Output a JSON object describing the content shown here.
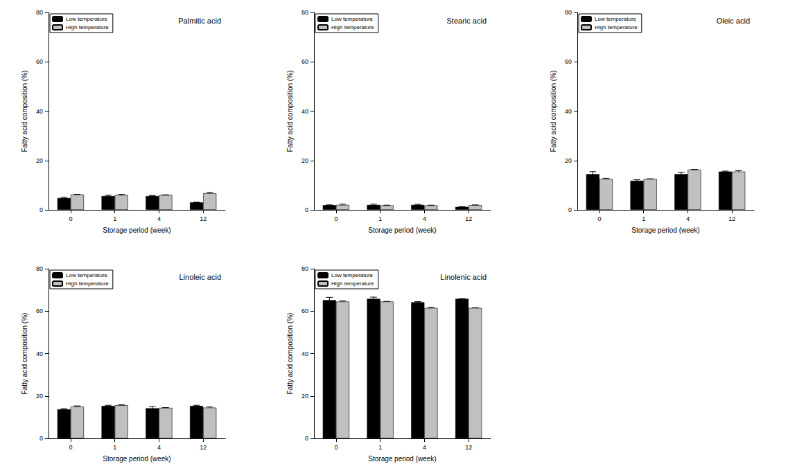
{
  "chart_data": [
    {
      "type": "bar",
      "title": "Palmitic acid",
      "x_label": "Storage period (week)",
      "y_label": "Fatty acid composition (%)",
      "categories": [
        "0",
        "1",
        "4",
        "12"
      ],
      "series": [
        {
          "name": "Low temperature",
          "color": "#000000",
          "values": [
            4.8,
            5.6,
            5.6,
            3.0
          ],
          "errors": [
            0.3,
            0.3,
            0.2,
            0.1
          ]
        },
        {
          "name": "High temperature",
          "color": "#c0c0c0",
          "values": [
            6.2,
            6.0,
            6.0,
            6.7
          ],
          "errors": [
            0.1,
            0.3,
            0.1,
            0.4
          ]
        }
      ],
      "ylim": [
        0,
        80
      ],
      "yticks": [
        0,
        20,
        40,
        60,
        80
      ],
      "legend": "upper left"
    },
    {
      "type": "bar",
      "title": "Stearic acid",
      "x_label": "Storage period (week)",
      "y_label": "Fatty acid composition (%)",
      "categories": [
        "0",
        "1",
        "4",
        "12"
      ],
      "series": [
        {
          "name": "Low temperature",
          "color": "#000000",
          "values": [
            1.9,
            2.0,
            2.0,
            1.2
          ],
          "errors": [
            0.1,
            0.3,
            0.2,
            0.1
          ]
        },
        {
          "name": "High temperature",
          "color": "#c0c0c0",
          "values": [
            2.0,
            1.8,
            1.8,
            1.9
          ],
          "errors": [
            0.3,
            0.1,
            0.1,
            0.1
          ]
        }
      ],
      "ylim": [
        0,
        80
      ],
      "yticks": [
        0,
        20,
        40,
        60,
        80
      ],
      "legend": "upper left"
    },
    {
      "type": "bar",
      "title": "Oleic acid",
      "x_label": "Storage period (week)",
      "y_label": "Fatty acid composition (%)",
      "categories": [
        "0",
        "1",
        "4",
        "12"
      ],
      "series": [
        {
          "name": "Low temperature",
          "color": "#000000",
          "values": [
            14.5,
            11.8,
            14.5,
            15.5
          ],
          "errors": [
            1.0,
            0.4,
            0.7,
            0.2
          ]
        },
        {
          "name": "High temperature",
          "color": "#c0c0c0",
          "values": [
            12.5,
            12.5,
            16.3,
            15.5
          ],
          "errors": [
            0.3,
            0.1,
            0.1,
            0.4
          ]
        }
      ],
      "ylim": [
        0,
        80
      ],
      "yticks": [
        0,
        20,
        40,
        60,
        80
      ],
      "legend": "upper left"
    },
    {
      "type": "bar",
      "title": "Linoleic acid",
      "x_label": "Storage period (week)",
      "y_label": "Fatty acid composition (%)",
      "categories": [
        "0",
        "1",
        "4",
        "12"
      ],
      "series": [
        {
          "name": "Low temperature",
          "color": "#000000",
          "values": [
            13.7,
            15.3,
            14.2,
            15.3
          ],
          "errors": [
            0.3,
            0.3,
            0.8,
            0.3
          ]
        },
        {
          "name": "High temperature",
          "color": "#c0c0c0",
          "values": [
            15.0,
            15.6,
            14.4,
            14.5
          ],
          "errors": [
            0.3,
            0.3,
            0.1,
            0.3
          ]
        }
      ],
      "ylim": [
        0,
        80
      ],
      "yticks": [
        0,
        20,
        40,
        60,
        80
      ],
      "legend": "upper left"
    },
    {
      "type": "bar",
      "title": "Linolenic acid",
      "x_label": "Storage period (week)",
      "y_label": "Fatty acid composition (%)",
      "categories": [
        "0",
        "1",
        "4",
        "12"
      ],
      "series": [
        {
          "name": "Low temperature",
          "color": "#000000",
          "values": [
            65.2,
            65.8,
            64.2,
            65.8
          ],
          "errors": [
            1.3,
            0.8,
            0.3,
            0.1
          ]
        },
        {
          "name": "High temperature",
          "color": "#c0c0c0",
          "values": [
            64.5,
            64.5,
            61.5,
            61.5
          ],
          "errors": [
            0.3,
            0.1,
            0.3,
            0.1
          ]
        }
      ],
      "ylim": [
        0,
        80
      ],
      "yticks": [
        0,
        20,
        40,
        60,
        80
      ],
      "legend": "upper left"
    }
  ]
}
